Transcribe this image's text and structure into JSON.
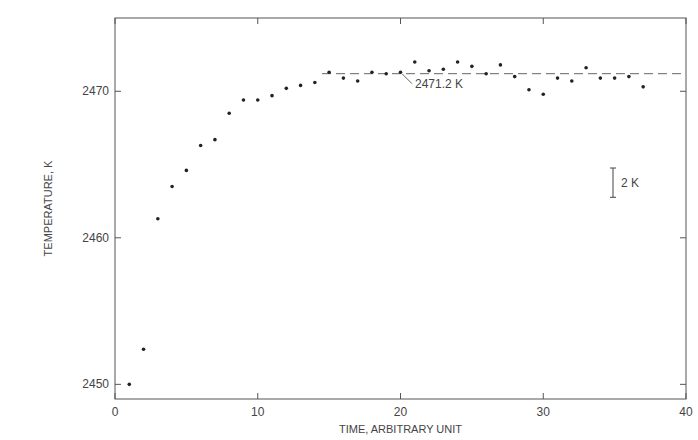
{
  "chart_data": {
    "type": "scatter",
    "x_label": "TIME, ARBITRARY UNIT",
    "y_label": "TEMPERATURE, K",
    "x": [
      1,
      2,
      3,
      4,
      5,
      6,
      7,
      8,
      9,
      10,
      11,
      12,
      13,
      14,
      15,
      16,
      17,
      18,
      19,
      20,
      21,
      22,
      23,
      24,
      25,
      26,
      27,
      28,
      29,
      30,
      31,
      32,
      33,
      34,
      35,
      36,
      37
    ],
    "values": [
      2450.0,
      2452.4,
      2461.3,
      2463.5,
      2464.6,
      2466.3,
      2466.7,
      2468.5,
      2469.4,
      2469.4,
      2469.7,
      2470.2,
      2470.4,
      2470.6,
      2471.3,
      2470.9,
      2470.7,
      2471.3,
      2471.2,
      2471.3,
      2472.0,
      2471.4,
      2471.5,
      2472.0,
      2471.7,
      2471.2,
      2471.8,
      2471.0,
      2470.1,
      2469.8,
      2470.9,
      2470.7,
      2471.6,
      2470.9,
      2470.9,
      2471.0,
      2470.3
    ],
    "color": "#222222",
    "marker": "dot",
    "xlim": [
      0,
      40
    ],
    "ylim": [
      2449,
      2475
    ],
    "xticks": [
      0,
      10,
      20,
      30,
      40
    ],
    "yticks": [
      2450,
      2460,
      2470
    ],
    "grid": false,
    "reference_line": {
      "y": 2471.2,
      "x_start": 14.5,
      "label": "2471.2 K",
      "line_style": "dashed"
    },
    "scale_bar": {
      "length": 2,
      "label": "2 K"
    }
  }
}
